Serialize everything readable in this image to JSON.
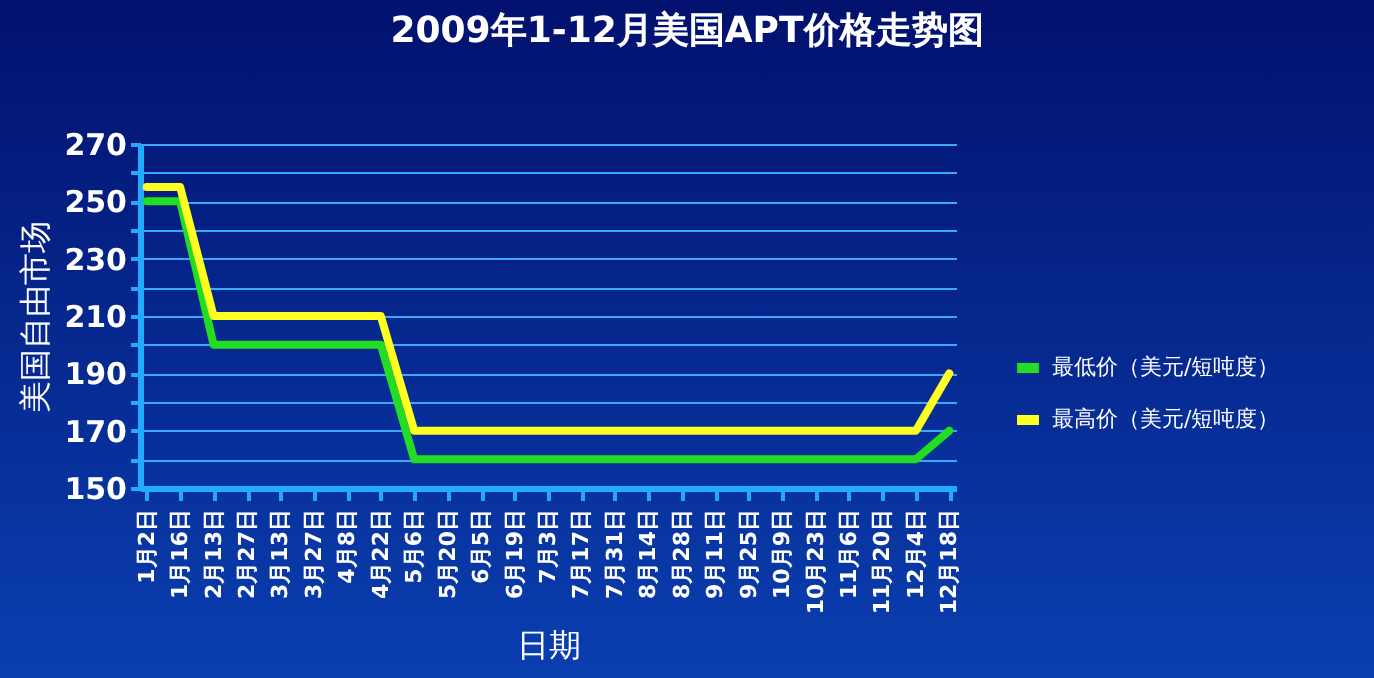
{
  "chart_data": {
    "type": "line",
    "title": "2009年1-12月美国APT价格走势图",
    "xlabel": "日期",
    "ylabel": "美国自由市场",
    "categories": [
      "1月2日",
      "1月16日",
      "2月13日",
      "2月27日",
      "3月13日",
      "3月27日",
      "4月8日",
      "4月22日",
      "5月6日",
      "5月20日",
      "6月5日",
      "6月19日",
      "7月3日",
      "7月17日",
      "7月31日",
      "8月14日",
      "8月28日",
      "9月11日",
      "9月25日",
      "10月9日",
      "10月23日",
      "11月6日",
      "11月20日",
      "12月4日",
      "12月18日"
    ],
    "series": [
      {
        "name": "最低价（美元/短吨度）",
        "color": "#22dd22",
        "values": [
          250,
          250,
          200,
          200,
          200,
          200,
          200,
          200,
          160,
          160,
          160,
          160,
          160,
          160,
          160,
          160,
          160,
          160,
          160,
          160,
          160,
          160,
          160,
          160,
          170
        ]
      },
      {
        "name": "最高价（美元/短吨度）",
        "color": "#ffff22",
        "values": [
          255,
          255,
          210,
          210,
          210,
          210,
          210,
          210,
          170,
          170,
          170,
          170,
          170,
          170,
          170,
          170,
          170,
          170,
          170,
          170,
          170,
          170,
          170,
          170,
          190
        ]
      }
    ],
    "ylim": [
      150,
      270
    ],
    "yticks": [
      150,
      {
        "value": 160,
        "label": null
      },
      170,
      {
        "value": 180,
        "label": null
      },
      190,
      {
        "value": 200,
        "label": null
      },
      210,
      {
        "value": 220,
        "label": null
      },
      230,
      {
        "value": 240,
        "label": null
      },
      250,
      {
        "value": 260,
        "label": null
      },
      270
    ],
    "grid": "y",
    "legend": "right",
    "marker": "none",
    "line_style": "solid"
  }
}
